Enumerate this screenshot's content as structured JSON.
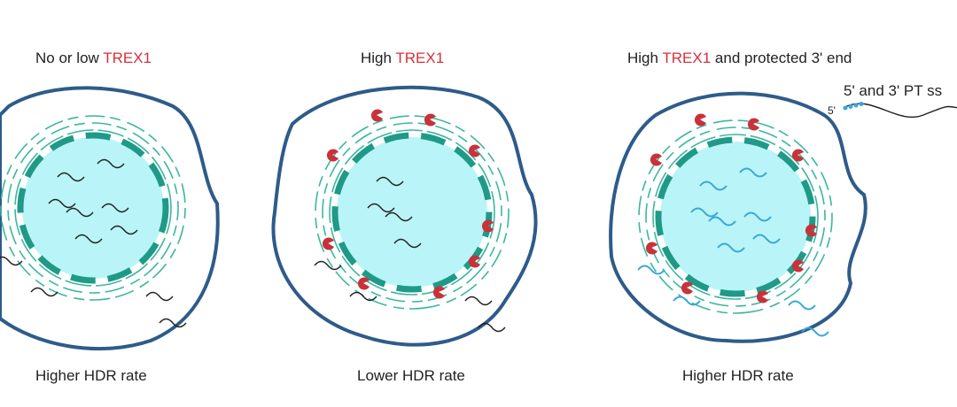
{
  "panels": [
    {
      "title": [
        "No or low ",
        "TREX1"
      ],
      "caption": "Higher HDR rate"
    },
    {
      "title": [
        "High ",
        "TREX1"
      ],
      "caption": "Lower HDR rate"
    },
    {
      "title": [
        "High ",
        "TREX1",
        " and protected 3' end"
      ],
      "caption": "Higher HDR rate"
    }
  ],
  "legend": {
    "label": "5' and 3' PT ss",
    "end_label": "5'"
  }
}
